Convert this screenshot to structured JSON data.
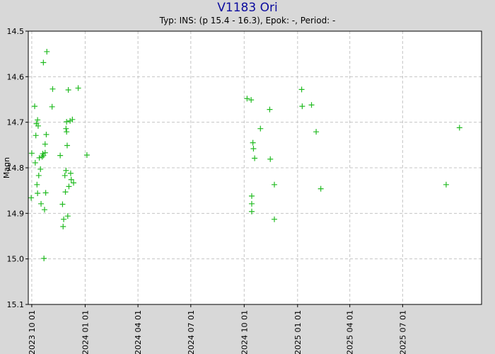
{
  "chart_data": {
    "type": "scatter",
    "title": "V1183 Ori",
    "subtitle": "Typ: INS: (p 15.4 - 16.3), Epok: -, Period: -",
    "xlabel": "",
    "ylabel": "Magn",
    "xlim": [
      "2023-09-25",
      "2025-11-14"
    ],
    "ylim": [
      14.5,
      15.1
    ],
    "y_inverted": true,
    "grid": true,
    "x_ticks": [
      "2023 10 01",
      "2024 01 01",
      "2024 04 01",
      "2024 07 01",
      "2024 10 01",
      "2025 01 01",
      "2025 04 01",
      "2025 07 01"
    ],
    "y_ticks": [
      "14.5",
      "14.6",
      "14.7",
      "14.8",
      "14.9",
      "15.0",
      "15.1"
    ],
    "marker_color": "#22bb22",
    "points": [
      {
        "x": "2023-09-30",
        "y": 14.866
      },
      {
        "x": "2023-10-01",
        "y": 14.768
      },
      {
        "x": "2023-10-06",
        "y": 14.665
      },
      {
        "x": "2023-10-07",
        "y": 14.789
      },
      {
        "x": "2023-10-08",
        "y": 14.729
      },
      {
        "x": "2023-10-09",
        "y": 14.703
      },
      {
        "x": "2023-10-10",
        "y": 14.837
      },
      {
        "x": "2023-10-11",
        "y": 14.695
      },
      {
        "x": "2023-10-11",
        "y": 14.856
      },
      {
        "x": "2023-10-12",
        "y": 14.708
      },
      {
        "x": "2023-10-13",
        "y": 14.817
      },
      {
        "x": "2023-10-14",
        "y": 14.778
      },
      {
        "x": "2023-10-16",
        "y": 14.803
      },
      {
        "x": "2023-10-17",
        "y": 14.879
      },
      {
        "x": "2023-10-19",
        "y": 14.776
      },
      {
        "x": "2023-10-20",
        "y": 14.769
      },
      {
        "x": "2023-10-21",
        "y": 14.569
      },
      {
        "x": "2023-10-21",
        "y": 14.773
      },
      {
        "x": "2023-10-22",
        "y": 14.999
      },
      {
        "x": "2023-10-23",
        "y": 14.892
      },
      {
        "x": "2023-10-24",
        "y": 14.748
      },
      {
        "x": "2023-10-24",
        "y": 14.767
      },
      {
        "x": "2023-10-25",
        "y": 14.855
      },
      {
        "x": "2023-10-26",
        "y": 14.727
      },
      {
        "x": "2023-10-27",
        "y": 14.545
      },
      {
        "x": "2023-11-05",
        "y": 14.666
      },
      {
        "x": "2023-11-06",
        "y": 14.627
      },
      {
        "x": "2023-11-19",
        "y": 14.773
      },
      {
        "x": "2023-11-23",
        "y": 14.88
      },
      {
        "x": "2023-11-24",
        "y": 14.929
      },
      {
        "x": "2023-11-25",
        "y": 14.913
      },
      {
        "x": "2023-11-27",
        "y": 14.817
      },
      {
        "x": "2023-11-28",
        "y": 14.853
      },
      {
        "x": "2023-11-29",
        "y": 14.806
      },
      {
        "x": "2023-11-29",
        "y": 14.714
      },
      {
        "x": "2023-11-30",
        "y": 14.699
      },
      {
        "x": "2023-11-30",
        "y": 14.721
      },
      {
        "x": "2023-12-01",
        "y": 14.751
      },
      {
        "x": "2023-12-02",
        "y": 14.906
      },
      {
        "x": "2023-12-03",
        "y": 14.629
      },
      {
        "x": "2023-12-04",
        "y": 14.841
      },
      {
        "x": "2023-12-06",
        "y": 14.697
      },
      {
        "x": "2023-12-07",
        "y": 14.812
      },
      {
        "x": "2023-12-08",
        "y": 14.826
      },
      {
        "x": "2023-12-10",
        "y": 14.694
      },
      {
        "x": "2023-12-12",
        "y": 14.833
      },
      {
        "x": "2023-12-20",
        "y": 14.625
      },
      {
        "x": "2024-01-04",
        "y": 14.772
      },
      {
        "x": "2024-10-06",
        "y": 14.648
      },
      {
        "x": "2024-10-13",
        "y": 14.651
      },
      {
        "x": "2024-10-14",
        "y": 14.862
      },
      {
        "x": "2024-10-14",
        "y": 14.879
      },
      {
        "x": "2024-10-14",
        "y": 14.896
      },
      {
        "x": "2024-10-16",
        "y": 14.745
      },
      {
        "x": "2024-10-17",
        "y": 14.758
      },
      {
        "x": "2024-10-19",
        "y": 14.779
      },
      {
        "x": "2024-10-29",
        "y": 14.714
      },
      {
        "x": "2024-11-14",
        "y": 14.672
      },
      {
        "x": "2024-11-15",
        "y": 14.781
      },
      {
        "x": "2024-11-22",
        "y": 14.837
      },
      {
        "x": "2024-11-22",
        "y": 14.913
      },
      {
        "x": "2025-01-08",
        "y": 14.628
      },
      {
        "x": "2025-01-09",
        "y": 14.665
      },
      {
        "x": "2025-01-25",
        "y": 14.662
      },
      {
        "x": "2025-02-02",
        "y": 14.721
      },
      {
        "x": "2025-02-10",
        "y": 14.846
      },
      {
        "x": "2025-09-14",
        "y": 14.837
      },
      {
        "x": "2025-10-07",
        "y": 14.712
      }
    ]
  }
}
